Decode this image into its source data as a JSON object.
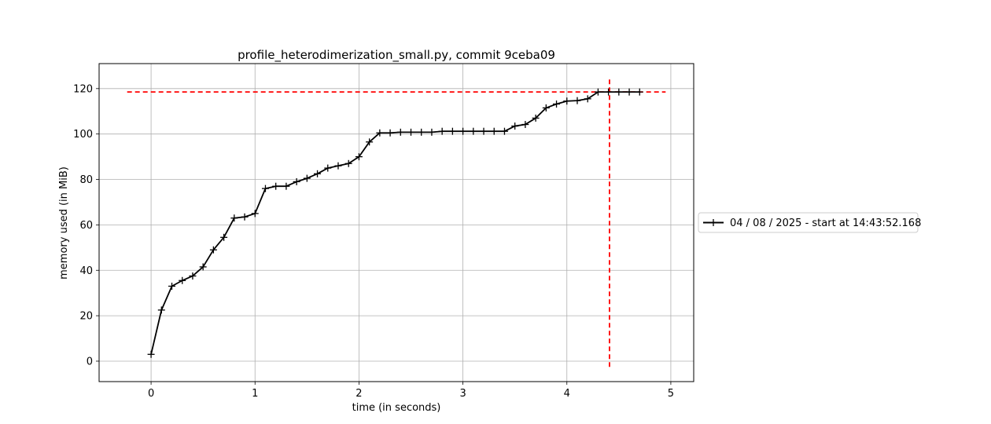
{
  "chart_data": {
    "type": "line",
    "title": "profile_heterodimerization_small.py, commit 9ceba09",
    "xlabel": "time (in seconds)",
    "ylabel": "memory used (in MiB)",
    "xlim": [
      -0.5,
      5.22
    ],
    "ylim": [
      -9,
      131
    ],
    "xticks": [
      0,
      1,
      2,
      3,
      4,
      5
    ],
    "yticks": [
      0,
      20,
      40,
      60,
      80,
      100,
      120
    ],
    "grid": true,
    "legend_placement": "center-right outside",
    "series": [
      {
        "name": "04 / 08 / 2025 - start at 14:43:52.168",
        "color": "#000000",
        "marker": "+",
        "x": [
          0.0,
          0.1,
          0.2,
          0.3,
          0.4,
          0.5,
          0.6,
          0.7,
          0.8,
          0.9,
          1.0,
          1.1,
          1.2,
          1.3,
          1.4,
          1.5,
          1.6,
          1.7,
          1.8,
          1.9,
          2.0,
          2.1,
          2.2,
          2.3,
          2.4,
          2.5,
          2.6,
          2.7,
          2.8,
          2.9,
          3.0,
          3.1,
          3.2,
          3.3,
          3.4,
          3.5,
          3.6,
          3.7,
          3.8,
          3.9,
          4.0,
          4.1,
          4.2,
          4.3,
          4.4,
          4.5,
          4.6,
          4.7
        ],
        "y": [
          3.0,
          22.5,
          33.0,
          35.5,
          37.5,
          41.5,
          49.0,
          54.5,
          63.0,
          63.5,
          65.0,
          76.0,
          77.0,
          77.0,
          79.0,
          80.5,
          82.5,
          85.0,
          86.0,
          87.0,
          90.0,
          96.5,
          100.5,
          100.5,
          100.8,
          100.8,
          100.8,
          100.8,
          101.2,
          101.2,
          101.2,
          101.2,
          101.2,
          101.2,
          101.2,
          103.5,
          104.2,
          107.0,
          111.5,
          113.2,
          114.5,
          114.7,
          115.5,
          118.5,
          118.5,
          118.5,
          118.5,
          118.5
        ]
      }
    ],
    "reference_lines": [
      {
        "orientation": "horizontal",
        "y": 118.5,
        "x_range": [
          -0.23,
          4.95
        ],
        "color": "#ff0000",
        "style": "dashed"
      },
      {
        "orientation": "vertical",
        "x": 4.41,
        "y_range": [
          -2.5,
          124.5
        ],
        "color": "#ff0000",
        "style": "dashed"
      }
    ]
  }
}
